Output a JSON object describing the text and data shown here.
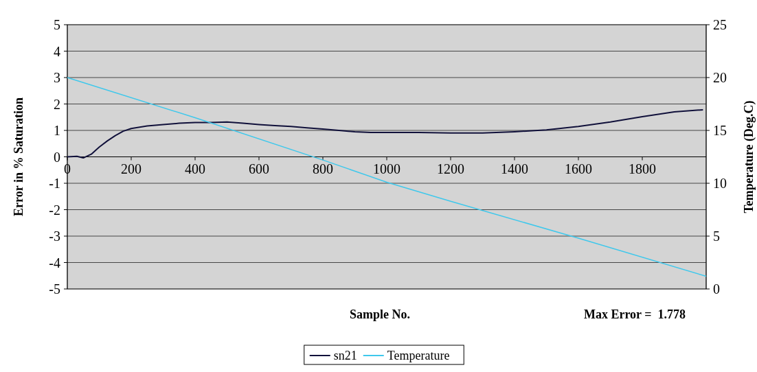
{
  "chart_data": {
    "type": "line",
    "xlabel": "Sample No.",
    "ylabel": "Error in % Saturation",
    "y2label": "Temperature (Deg.C)",
    "annotations": [
      "Max Error =  1.778"
    ],
    "xlim": [
      0,
      2000
    ],
    "xticks": [
      0,
      200,
      400,
      600,
      800,
      1000,
      1200,
      1400,
      1600,
      1800
    ],
    "ylim": [
      -5,
      5
    ],
    "yticks": [
      -5,
      -4,
      -3,
      -2,
      -1,
      0,
      1,
      2,
      3,
      4,
      5
    ],
    "y2lim": [
      0,
      25
    ],
    "y2ticks": [
      0,
      5,
      10,
      15,
      20,
      25
    ],
    "grid": "y",
    "legend": "bottom",
    "series": [
      {
        "name": "sn21",
        "color": "#10103a",
        "x": [
          0,
          30,
          50,
          75,
          100,
          125,
          150,
          175,
          200,
          250,
          300,
          350,
          400,
          450,
          500,
          550,
          600,
          650,
          700,
          750,
          800,
          850,
          900,
          950,
          1000,
          1100,
          1200,
          1300,
          1400,
          1500,
          1600,
          1700,
          1800,
          1900,
          1990
        ],
        "values": [
          0.0,
          0.02,
          -0.04,
          0.1,
          0.37,
          0.6,
          0.8,
          0.97,
          1.07,
          1.17,
          1.22,
          1.27,
          1.3,
          1.3,
          1.32,
          1.27,
          1.22,
          1.18,
          1.15,
          1.1,
          1.05,
          1.0,
          0.95,
          0.92,
          0.92,
          0.92,
          0.9,
          0.9,
          0.95,
          1.02,
          1.15,
          1.32,
          1.52,
          1.7,
          1.78
        ]
      },
      {
        "name": "Temperature",
        "color": "#3ec8ec",
        "axis": "y2",
        "x": [
          0,
          400,
          800,
          1000,
          1200,
          1600,
          2000
        ],
        "values": [
          20,
          16.2,
          12.2,
          10.1,
          8.3,
          4.8,
          1.2
        ]
      }
    ]
  }
}
